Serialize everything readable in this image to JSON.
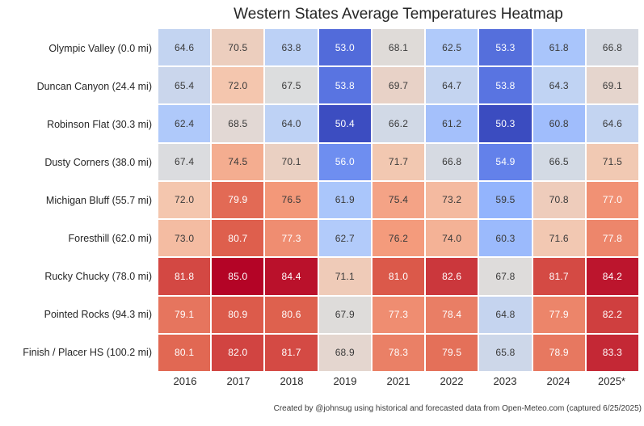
{
  "chart_data": {
    "type": "heatmap",
    "title": "Western States Average Temperatures Heatmap",
    "footer": "Created by @johnsug using historical and forecasted data from Open-Meteo.com (captured 6/25/2025)",
    "columns": [
      "2016",
      "2017",
      "2018",
      "2019",
      "2021",
      "2022",
      "2023",
      "2024",
      "2025*"
    ],
    "rows": [
      "Olympic Valley (0.0 mi)",
      "Duncan Canyon (24.4 mi)",
      "Robinson Flat (30.3 mi)",
      "Dusty Corners (38.0 mi)",
      "Michigan Bluff (55.7 mi)",
      "Foresthill (62.0 mi)",
      "Rucky Chucky (78.0 mi)",
      "Pointed Rocks (94.3 mi)",
      "Finish / Placer HS (100.2 mi)"
    ],
    "values": [
      [
        64.6,
        70.5,
        63.8,
        53.0,
        68.1,
        62.5,
        53.3,
        61.8,
        66.8
      ],
      [
        65.4,
        72.0,
        67.5,
        53.8,
        69.7,
        64.7,
        53.8,
        64.3,
        69.1
      ],
      [
        62.4,
        68.5,
        64.0,
        50.4,
        66.2,
        61.2,
        50.3,
        60.8,
        64.6
      ],
      [
        67.4,
        74.5,
        70.1,
        56.0,
        71.7,
        66.8,
        54.9,
        66.5,
        71.5
      ],
      [
        72.0,
        79.9,
        76.5,
        61.9,
        75.4,
        73.2,
        59.5,
        70.8,
        77.0
      ],
      [
        73.0,
        80.7,
        77.3,
        62.7,
        76.2,
        74.0,
        60.3,
        71.6,
        77.8
      ],
      [
        81.8,
        85.0,
        84.4,
        71.1,
        81.0,
        82.6,
        67.8,
        81.7,
        84.2
      ],
      [
        79.1,
        80.9,
        80.6,
        67.9,
        77.3,
        78.4,
        64.8,
        77.9,
        82.2
      ],
      [
        80.1,
        82.0,
        81.7,
        68.9,
        78.3,
        79.5,
        65.8,
        78.9,
        83.3
      ]
    ],
    "vmin": 50.3,
    "vmax": 85.0,
    "legend": "none",
    "grid_gap_color": "#ffffff",
    "colormap": {
      "name": "coolwarm",
      "anchors": [
        {
          "pos": 0.0,
          "color": "#3B4CC0"
        },
        {
          "pos": 0.125,
          "color": "#607EE9"
        },
        {
          "pos": 0.25,
          "color": "#8EB0FE"
        },
        {
          "pos": 0.375,
          "color": "#B8D0F9"
        },
        {
          "pos": 0.5,
          "color": "#DDDDDD"
        },
        {
          "pos": 0.625,
          "color": "#F4C6AE"
        },
        {
          "pos": 0.75,
          "color": "#F49A7B"
        },
        {
          "pos": 0.875,
          "color": "#DE604D"
        },
        {
          "pos": 1.0,
          "color": "#B40426"
        }
      ],
      "text_light": "#FFFFFF",
      "text_dark": "#3A3A3A",
      "luminance_threshold": 173
    }
  }
}
